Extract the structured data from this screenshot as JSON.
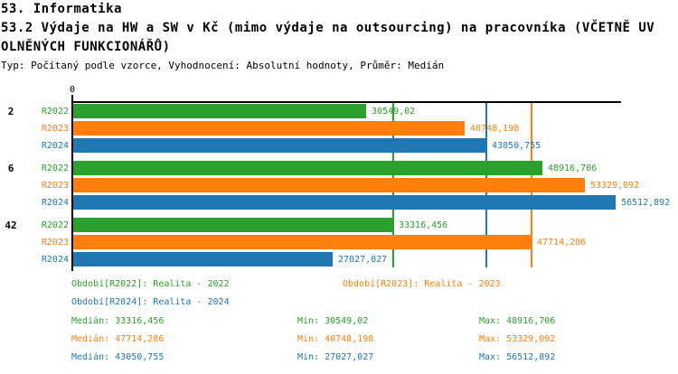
{
  "header": {
    "line1": "53. Informatika",
    "line2": "53.2 Výdaje na HW a SW v Kč (mimo výdaje na outsourcing) na pracovníka (VČETNĚ UV",
    "line3": "OLNĚNÝCH FUNKCIONÁŘŮ)",
    "line4": "Typ: Počítaný podle vzorce, Vyhodnocení: Absolutní hodnoty, Průměr: Medián"
  },
  "axis": {
    "zero_label": "0"
  },
  "colors": {
    "R2022": "#2ca02c",
    "R2023": "#ff7f0e",
    "R2024": "#1f77b4"
  },
  "chart_data": {
    "type": "bar",
    "orientation": "horizontal",
    "title": "53.2 Výdaje na HW a SW v Kč (mimo výdaje na outsourcing) na pracovníka (VČETNĚ UVOLNĚNÝCH FUNKCIONÁŘŮ)",
    "subtitle": "Typ: Počítaný podle vzorce, Vyhodnocení: Absolutní hodnoty, Průměr: Medián",
    "categories": [
      "2",
      "6",
      "42"
    ],
    "series": [
      {
        "key": "R2022",
        "name": "Období[R2022]: Realita - 2022",
        "color": "#2ca02c",
        "values": [
          30549.02,
          48916.706,
          33316.456
        ],
        "median": 33316.456,
        "min": 30549.02,
        "max": 48916.706
      },
      {
        "key": "R2023",
        "name": "Období[R2023]: Realita - 2023",
        "color": "#ff7f0e",
        "values": [
          40748.198,
          53329.092,
          47714.286
        ],
        "median": 47714.286,
        "min": 40748.198,
        "max": 53329.092
      },
      {
        "key": "R2024",
        "name": "Období[R2024]: Realita - 2024",
        "color": "#1f77b4",
        "values": [
          43050.755,
          56512.892,
          27027.027
        ],
        "median": 43050.755,
        "min": 27027.027,
        "max": 56512.892
      }
    ],
    "xlim": [
      0,
      56512.892
    ],
    "grid": false,
    "value_labels": true,
    "median_lines": true,
    "legend_position": "bottom"
  },
  "groups": [
    {
      "label": "2",
      "bars": [
        {
          "series": "R2022",
          "value": 30549.02,
          "display": "30549,02"
        },
        {
          "series": "R2023",
          "value": 40748.198,
          "display": "40748,198"
        },
        {
          "series": "R2024",
          "value": 43050.755,
          "display": "43050,755"
        }
      ]
    },
    {
      "label": "6",
      "bars": [
        {
          "series": "R2022",
          "value": 48916.706,
          "display": "48916,706"
        },
        {
          "series": "R2023",
          "value": 53329.092,
          "display": "53329,092"
        },
        {
          "series": "R2024",
          "value": 56512.892,
          "display": "56512,892"
        }
      ]
    },
    {
      "label": "42",
      "bars": [
        {
          "series": "R2022",
          "value": 33316.456,
          "display": "33316,456"
        },
        {
          "series": "R2023",
          "value": 47714.286,
          "display": "47714,286"
        },
        {
          "series": "R2024",
          "value": 27027.027,
          "display": "27027,027"
        }
      ]
    }
  ],
  "medians": [
    {
      "series": "R2022",
      "value": 33316.456
    },
    {
      "series": "R2024",
      "value": 43050.755
    },
    {
      "series": "R2023",
      "value": 47714.286
    }
  ],
  "legend": {
    "items": [
      {
        "series": "R2022",
        "text": "Období[R2022]: Realita - 2022",
        "row": 0,
        "col": 0
      },
      {
        "series": "R2023",
        "text": "Období[R2023]: Realita - 2023",
        "row": 0,
        "col": 1
      },
      {
        "series": "R2024",
        "text": "Období[R2024]: Realita - 2024",
        "row": 1,
        "col": 0
      }
    ]
  },
  "stats": [
    {
      "series": "R2022",
      "median": "Medián: 33316,456",
      "min": "Min: 30549,02",
      "max": "Max: 48916,706"
    },
    {
      "series": "R2023",
      "median": "Medián: 47714,286",
      "min": "Min: 40748,198",
      "max": "Max: 53329,092"
    },
    {
      "series": "R2024",
      "median": "Medián: 43050,755",
      "min": "Min: 27027,027",
      "max": "Max: 56512,892"
    }
  ]
}
